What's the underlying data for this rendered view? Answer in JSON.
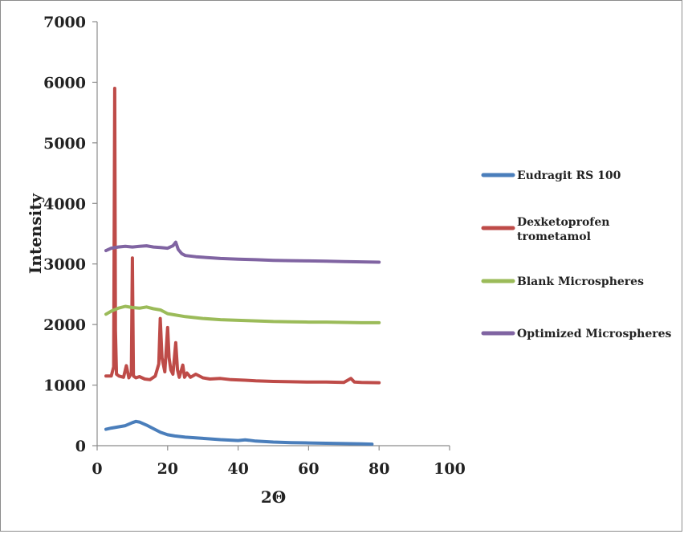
{
  "chart_data": {
    "type": "line",
    "title": "",
    "xlabel": "2Θ",
    "ylabel": "Intensity",
    "xlim": [
      0,
      100
    ],
    "ylim": [
      0,
      7000
    ],
    "x_ticks": [
      "0",
      "20",
      "40",
      "60",
      "80",
      "100"
    ],
    "y_ticks": [
      "0",
      "1000",
      "2000",
      "3000",
      "4000",
      "5000",
      "6000",
      "7000"
    ],
    "grid": false,
    "legend_position": "right",
    "series": [
      {
        "name": "Eudragit RS 100",
        "color": "#4a7ebb",
        "x": [
          2.5,
          4,
          6,
          8,
          10,
          11,
          12,
          14,
          16,
          18,
          20,
          22,
          25,
          30,
          35,
          40,
          42,
          43,
          45,
          50,
          55,
          60,
          65,
          70,
          75,
          78
        ],
        "y": [
          270,
          290,
          310,
          330,
          380,
          400,
          390,
          340,
          280,
          220,
          180,
          160,
          140,
          120,
          100,
          85,
          95,
          90,
          75,
          60,
          50,
          45,
          40,
          35,
          30,
          25
        ]
      },
      {
        "name": "Dexketoprofen trometamol",
        "color": "#be4b48",
        "x": [
          2.5,
          4,
          4.7,
          5.0,
          5.2,
          5.5,
          6.2,
          7.5,
          8.3,
          9,
          9.7,
          10.0,
          10.3,
          11,
          12,
          13.5,
          15,
          16.5,
          17.5,
          17.9,
          18.4,
          19.2,
          20.0,
          20.4,
          20.9,
          21.5,
          22.3,
          22.8,
          23.3,
          24.3,
          24.8,
          25.5,
          26.5,
          28,
          30,
          32,
          35,
          38,
          42,
          45,
          50,
          55,
          60,
          65,
          70,
          72,
          73,
          75,
          80
        ],
        "y": [
          1150,
          1150,
          1300,
          5900,
          1900,
          1180,
          1150,
          1130,
          1320,
          1120,
          1200,
          3100,
          1150,
          1120,
          1140,
          1100,
          1090,
          1150,
          1350,
          2100,
          1450,
          1220,
          1950,
          1450,
          1250,
          1180,
          1700,
          1250,
          1130,
          1330,
          1130,
          1200,
          1130,
          1180,
          1120,
          1100,
          1110,
          1090,
          1080,
          1070,
          1060,
          1055,
          1050,
          1050,
          1045,
          1110,
          1050,
          1045,
          1040
        ]
      },
      {
        "name": "Blank Microspheres",
        "color": "#9bbb59",
        "x": [
          2.5,
          4,
          6,
          8,
          10,
          12,
          14,
          16,
          18,
          20,
          22,
          25,
          30,
          35,
          40,
          45,
          50,
          55,
          60,
          65,
          70,
          75,
          80
        ],
        "y": [
          2170,
          2220,
          2270,
          2300,
          2280,
          2270,
          2290,
          2260,
          2240,
          2180,
          2160,
          2130,
          2100,
          2080,
          2070,
          2060,
          2050,
          2045,
          2040,
          2040,
          2035,
          2030,
          2030
        ]
      },
      {
        "name": "Optimized Microspheres",
        "color": "#8064a2",
        "x": [
          2.5,
          4,
          6,
          8,
          10,
          12,
          14,
          16,
          18,
          20,
          21.5,
          22.3,
          23,
          24,
          25,
          28,
          30,
          35,
          40,
          45,
          50,
          55,
          60,
          65,
          70,
          75,
          80
        ],
        "y": [
          3220,
          3260,
          3280,
          3290,
          3280,
          3290,
          3300,
          3280,
          3270,
          3260,
          3300,
          3360,
          3240,
          3170,
          3140,
          3120,
          3110,
          3090,
          3080,
          3070,
          3060,
          3055,
          3050,
          3045,
          3040,
          3035,
          3030
        ]
      }
    ]
  }
}
